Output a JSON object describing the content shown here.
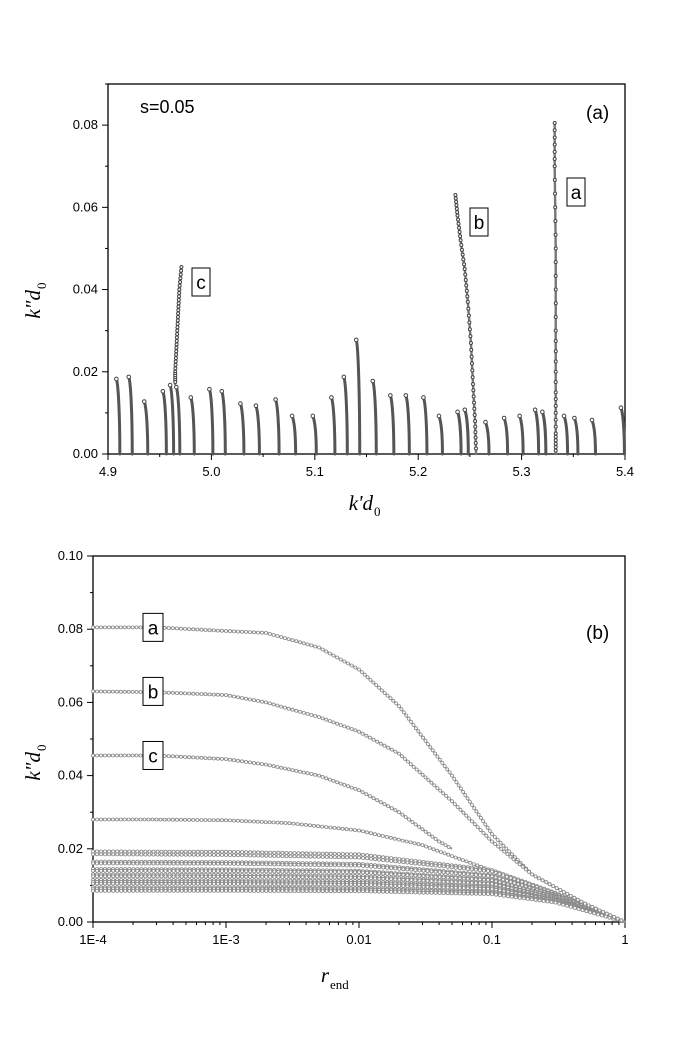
{
  "chart_data": [
    {
      "type": "scatter",
      "panel_label": "(a)",
      "annotation": "s=0.05",
      "xlabel": "k'd",
      "xlabel_sub": "0",
      "ylabel": "k\"d",
      "ylabel_sub": "0",
      "xlim": [
        4.9,
        5.4
      ],
      "ylim": [
        0,
        0.09
      ],
      "xticks": [
        "4.9",
        "5.0",
        "5.1",
        "5.2",
        "5.3",
        "5.4"
      ],
      "yticks": [
        "0.00",
        "0.02",
        "0.04",
        "0.06",
        "0.08"
      ],
      "grid": false,
      "labeled_tracks": [
        {
          "name": "a",
          "points": [
            [
              5.332,
              0.0805
            ],
            [
              5.332,
              0.07
            ],
            [
              5.333,
              0.05
            ],
            [
              5.333,
              0.03
            ],
            [
              5.333,
              0.015
            ],
            [
              5.333,
              0.005
            ],
            [
              5.333,
              0.0
            ]
          ]
        },
        {
          "name": "b",
          "points": [
            [
              5.236,
              0.063
            ],
            [
              5.238,
              0.058
            ],
            [
              5.241,
              0.052
            ],
            [
              5.245,
              0.045
            ],
            [
              5.248,
              0.037
            ],
            [
              5.251,
              0.027
            ],
            [
              5.253,
              0.017
            ],
            [
              5.255,
              0.008
            ],
            [
              5.256,
              0.0
            ]
          ]
        },
        {
          "name": "c",
          "points": [
            [
              4.971,
              0.0455
            ],
            [
              4.969,
              0.04
            ],
            [
              4.968,
              0.035
            ],
            [
              4.967,
              0.03
            ],
            [
              4.966,
              0.025
            ],
            [
              4.965,
              0.02
            ],
            [
              4.965,
              0.017
            ]
          ]
        }
      ],
      "resonance_tracks": [
        [
          4.91,
          0.0185
        ],
        [
          4.922,
          0.019
        ],
        [
          4.937,
          0.013
        ],
        [
          4.955,
          0.0155
        ],
        [
          4.962,
          0.017
        ],
        [
          4.968,
          0.0165
        ],
        [
          4.982,
          0.014
        ],
        [
          5.0,
          0.016
        ],
        [
          5.012,
          0.0155
        ],
        [
          5.03,
          0.0125
        ],
        [
          5.045,
          0.012
        ],
        [
          5.064,
          0.0135
        ],
        [
          5.08,
          0.0095
        ],
        [
          5.1,
          0.0095
        ],
        [
          5.118,
          0.014
        ],
        [
          5.13,
          0.019
        ],
        [
          5.142,
          0.028
        ],
        [
          5.158,
          0.018
        ],
        [
          5.175,
          0.0145
        ],
        [
          5.19,
          0.0145
        ],
        [
          5.207,
          0.014
        ],
        [
          5.222,
          0.0095
        ],
        [
          5.24,
          0.0105
        ],
        [
          5.247,
          0.011
        ],
        [
          5.267,
          0.008
        ],
        [
          5.285,
          0.009
        ],
        [
          5.3,
          0.0095
        ],
        [
          5.315,
          0.011
        ],
        [
          5.322,
          0.0105
        ],
        [
          5.343,
          0.0095
        ],
        [
          5.353,
          0.009
        ],
        [
          5.37,
          0.0085
        ],
        [
          5.398,
          0.0115
        ]
      ]
    },
    {
      "type": "scatter",
      "panel_label": "(b)",
      "xlabel": "r",
      "xlabel_sub": "end",
      "ylabel": "k\"d",
      "ylabel_sub": "0",
      "xscale": "log",
      "xlim": [
        0.0001,
        1
      ],
      "ylim": [
        0,
        0.1
      ],
      "xticks": [
        "1E-4",
        "1E-3",
        "0.01",
        "0.1",
        "1"
      ],
      "yticks": [
        "0.00",
        "0.02",
        "0.04",
        "0.06",
        "0.08",
        "0.10"
      ],
      "grid": false,
      "labeled_curves": [
        {
          "name": "a",
          "x": [
            0.0001,
            0.0003,
            0.001,
            0.002,
            0.005,
            0.01,
            0.02,
            0.05,
            0.1,
            0.2,
            0.5,
            1
          ],
          "y": [
            0.0805,
            0.0805,
            0.0795,
            0.079,
            0.075,
            0.069,
            0.059,
            0.04,
            0.024,
            0.013,
            0.005,
            0.0
          ]
        },
        {
          "name": "b",
          "x": [
            0.0001,
            0.0003,
            0.001,
            0.002,
            0.005,
            0.01,
            0.02,
            0.05,
            0.1,
            0.2,
            0.5,
            1
          ],
          "y": [
            0.063,
            0.0628,
            0.062,
            0.06,
            0.056,
            0.052,
            0.046,
            0.033,
            0.022,
            0.013,
            0.005,
            0.0
          ]
        },
        {
          "name": "c",
          "x": [
            0.0001,
            0.0003,
            0.001,
            0.002,
            0.005,
            0.01,
            0.02,
            0.04,
            0.05
          ],
          "y": [
            0.0455,
            0.0455,
            0.0445,
            0.043,
            0.04,
            0.036,
            0.03,
            0.022,
            0.02
          ]
        }
      ],
      "other_curves": [
        {
          "x": [
            0.0001,
            0.0003,
            0.001,
            0.003,
            0.01,
            0.03,
            0.05,
            0.1,
            0.2,
            0.5,
            1
          ],
          "y": [
            0.028,
            0.028,
            0.0278,
            0.027,
            0.025,
            0.021,
            0.018,
            0.014,
            0.01,
            0.005,
            0.0
          ]
        },
        {
          "x": [
            0.0001,
            0.001,
            0.01,
            0.1,
            0.3,
            1
          ],
          "y": [
            0.0193,
            0.0192,
            0.0185,
            0.0142,
            0.008,
            0.0
          ]
        },
        {
          "x": [
            0.0001,
            0.001,
            0.01,
            0.1,
            0.3,
            1
          ],
          "y": [
            0.0185,
            0.0183,
            0.0176,
            0.0138,
            0.0078,
            0.0
          ]
        },
        {
          "x": [
            0.0001,
            0.001,
            0.01,
            0.1,
            0.3,
            1
          ],
          "y": [
            0.0165,
            0.0164,
            0.0159,
            0.0128,
            0.0074,
            0.0
          ]
        },
        {
          "x": [
            0.0001,
            0.001,
            0.01,
            0.1,
            0.3,
            1
          ],
          "y": [
            0.016,
            0.0159,
            0.0154,
            0.0125,
            0.0072,
            0.0
          ]
        },
        {
          "x": [
            0.0001,
            0.001,
            0.01,
            0.1,
            0.3,
            1
          ],
          "y": [
            0.0145,
            0.0144,
            0.014,
            0.0117,
            0.0069,
            0.0
          ]
        },
        {
          "x": [
            0.0001,
            0.001,
            0.01,
            0.1,
            0.3,
            1
          ],
          "y": [
            0.014,
            0.0139,
            0.0136,
            0.0114,
            0.0068,
            0.0
          ]
        },
        {
          "x": [
            0.0001,
            0.001,
            0.01,
            0.1,
            0.3,
            1
          ],
          "y": [
            0.013,
            0.0129,
            0.0126,
            0.0107,
            0.0065,
            0.0
          ]
        },
        {
          "x": [
            0.0001,
            0.001,
            0.01,
            0.1,
            0.3,
            1
          ],
          "y": [
            0.0125,
            0.0124,
            0.0121,
            0.0104,
            0.0064,
            0.0
          ]
        },
        {
          "x": [
            0.0001,
            0.001,
            0.01,
            0.1,
            0.3,
            1
          ],
          "y": [
            0.0115,
            0.0114,
            0.0112,
            0.0097,
            0.0061,
            0.0
          ]
        },
        {
          "x": [
            0.0001,
            0.001,
            0.01,
            0.1,
            0.3,
            1
          ],
          "y": [
            0.011,
            0.0109,
            0.0107,
            0.0094,
            0.006,
            0.0
          ]
        },
        {
          "x": [
            0.0001,
            0.001,
            0.01,
            0.1,
            0.3,
            1
          ],
          "y": [
            0.0105,
            0.0104,
            0.0102,
            0.009,
            0.0059,
            0.0
          ]
        },
        {
          "x": [
            0.0001,
            0.001,
            0.01,
            0.1,
            0.3,
            1
          ],
          "y": [
            0.0095,
            0.0094,
            0.0093,
            0.0083,
            0.0056,
            0.0
          ]
        },
        {
          "x": [
            0.0001,
            0.001,
            0.01,
            0.1,
            0.3,
            1
          ],
          "y": [
            0.009,
            0.009,
            0.0089,
            0.008,
            0.0055,
            0.0
          ]
        },
        {
          "x": [
            0.0001,
            0.001,
            0.01,
            0.1,
            0.3,
            1
          ],
          "y": [
            0.0085,
            0.0085,
            0.0084,
            0.0076,
            0.0053,
            0.0
          ]
        }
      ]
    }
  ]
}
